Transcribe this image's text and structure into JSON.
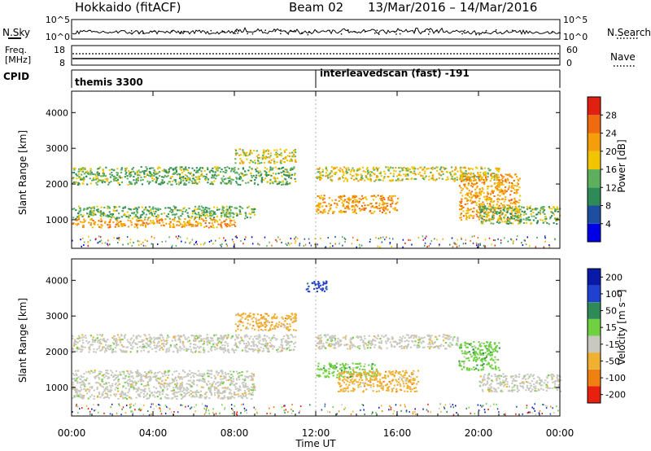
{
  "header": {
    "station": "Hokkaido (fitACF)",
    "beam": "Beam 02",
    "date_range": "13/Mar/2016 – 14/Mar/2016"
  },
  "strips": {
    "nsky": {
      "label": "N.Sky",
      "ticks": [
        "10^5",
        "10^0"
      ]
    },
    "nsearch": {
      "label": "N.Search",
      "ticks": [
        "10^5",
        "10^0"
      ]
    },
    "freq": {
      "label_top": "Freq.",
      "label_unit": "[MHz]",
      "ticks": [
        "18",
        "8"
      ]
    },
    "nave": {
      "label": "Nave",
      "ticks": [
        "60",
        "0"
      ]
    },
    "cpid": {
      "label": "CPID",
      "modes": [
        "themis 3300",
        "interleavedscan (fast) -191"
      ],
      "mode_start_hours": [
        0,
        12
      ]
    }
  },
  "colors": {
    "power_scale": [
      "#0000e6",
      "#1e4ea0",
      "#2e8b57",
      "#5dae5d",
      "#f2c400",
      "#f59e0b",
      "#f06a10",
      "#e02010"
    ],
    "velocity_scale": [
      "#0a1aa8",
      "#2040d0",
      "#2e8b57",
      "#6fd040",
      "#c8c8c0",
      "#f0b030",
      "#f08010",
      "#e82010"
    ]
  },
  "chart_data": [
    {
      "type": "heatmap",
      "title": "",
      "xlabel": "",
      "ylabel": "Slant Range [km]",
      "xlim": [
        0,
        24
      ],
      "ylim": [
        200,
        4600
      ],
      "x_ticks": [
        "00:00",
        "04:00",
        "08:00",
        "12:00",
        "16:00",
        "20:00",
        "00:00"
      ],
      "y_ticks": [
        1000,
        2000,
        3000,
        4000
      ],
      "colorbar": {
        "label": "Power [dB]",
        "ticks": [
          "4",
          "8",
          "12",
          "16",
          "20",
          "24",
          "28"
        ],
        "range": [
          0,
          32
        ]
      },
      "features": [
        {
          "t_start": 0,
          "t_end": 8,
          "range_start": 800,
          "range_end": 1050,
          "level": "20-28"
        },
        {
          "t_start": 0,
          "t_end": 9,
          "range_start": 1050,
          "range_end": 1400,
          "level": "12-20"
        },
        {
          "t_start": 0,
          "t_end": 11,
          "range_start": 2000,
          "range_end": 2500,
          "level": "12-20"
        },
        {
          "t_start": 8,
          "t_end": 11,
          "range_start": 2600,
          "range_end": 3000,
          "level": "16-24"
        },
        {
          "t_start": 12,
          "t_end": 16,
          "range_start": 1200,
          "range_end": 1700,
          "level": "20-28"
        },
        {
          "t_start": 12,
          "t_end": 21,
          "range_start": 2100,
          "range_end": 2500,
          "level": "16-24"
        },
        {
          "t_start": 19,
          "t_end": 22,
          "range_start": 1000,
          "range_end": 2300,
          "level": "20-28"
        },
        {
          "t_start": 20,
          "t_end": 24,
          "range_start": 900,
          "range_end": 1400,
          "level": "12-20"
        }
      ]
    },
    {
      "type": "heatmap",
      "title": "",
      "xlabel": "Time UT",
      "ylabel": "Slant Range [km]",
      "xlim": [
        0,
        24
      ],
      "ylim": [
        200,
        4600
      ],
      "x_ticks": [
        "00:00",
        "04:00",
        "08:00",
        "12:00",
        "16:00",
        "20:00",
        "00:00"
      ],
      "y_ticks": [
        1000,
        2000,
        3000,
        4000
      ],
      "colorbar": {
        "label": "Velocity [m s⁻¹]",
        "ticks": [
          "200",
          "100",
          "50",
          "15",
          "-15",
          "-50",
          "-100",
          "-200"
        ],
        "range": [
          -250,
          250
        ]
      },
      "features": [
        {
          "t_start": 0,
          "t_end": 9,
          "range_start": 700,
          "range_end": 1500,
          "level": "-15..15"
        },
        {
          "t_start": 0,
          "t_end": 11,
          "range_start": 2000,
          "range_end": 2500,
          "level": "-15..15"
        },
        {
          "t_start": 8,
          "t_end": 11,
          "range_start": 2600,
          "range_end": 3100,
          "level": "-50..-15"
        },
        {
          "t_start": 11.5,
          "t_end": 12.5,
          "range_start": 3700,
          "range_end": 4000,
          "level": "100..200"
        },
        {
          "t_start": 12,
          "t_end": 15,
          "range_start": 1300,
          "range_end": 1700,
          "level": "15..50"
        },
        {
          "t_start": 12,
          "t_end": 19,
          "range_start": 2100,
          "range_end": 2500,
          "level": "-15..15"
        },
        {
          "t_start": 13,
          "t_end": 17,
          "range_start": 900,
          "range_end": 1500,
          "level": "-50..-15"
        },
        {
          "t_start": 19,
          "t_end": 21,
          "range_start": 1500,
          "range_end": 2300,
          "level": "15..50"
        },
        {
          "t_start": 20,
          "t_end": 24,
          "range_start": 900,
          "range_end": 1400,
          "level": "-15..15"
        }
      ]
    }
  ]
}
